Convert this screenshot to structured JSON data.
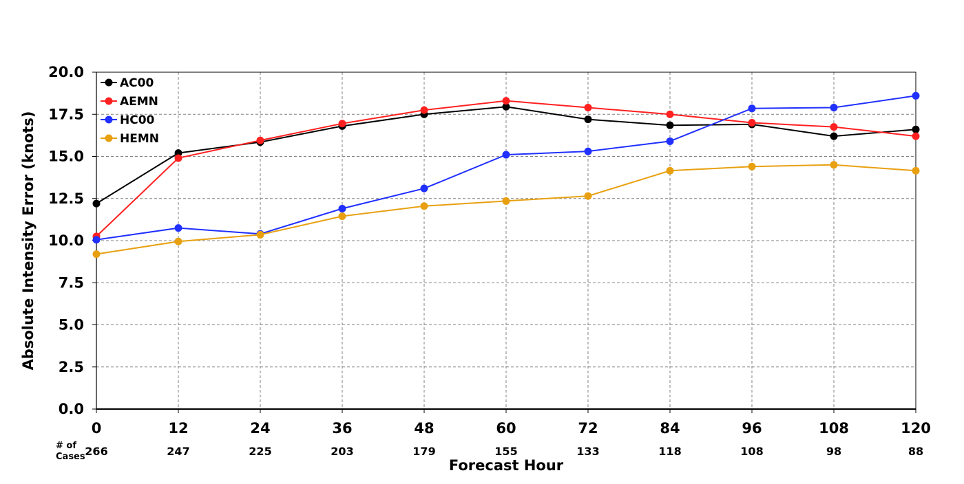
{
  "chart_data": {
    "type": "line",
    "xlabel": "Forecast Hour",
    "ylabel": "Absolute Intensity Error (knots)",
    "ylim": [
      0,
      20
    ],
    "yticks": [
      "0.0",
      "2.5",
      "5.0",
      "7.5",
      "10.0",
      "12.5",
      "15.0",
      "17.5",
      "20.0"
    ],
    "x": [
      0,
      12,
      24,
      36,
      48,
      60,
      72,
      84,
      96,
      108,
      120
    ],
    "x_tick_labels": [
      "0",
      "12",
      "24",
      "36",
      "48",
      "60",
      "72",
      "84",
      "96",
      "108",
      "120"
    ],
    "grid": true,
    "legend_position": "top-left",
    "cases_label": "# of\nCases",
    "cases": [
      "266",
      "247",
      "225",
      "203",
      "179",
      "155",
      "133",
      "118",
      "108",
      "98",
      "88"
    ],
    "series": [
      {
        "name": "AC00",
        "color": "#000000",
        "values": [
          12.2,
          15.2,
          15.85,
          16.8,
          17.5,
          17.95,
          17.2,
          16.85,
          16.9,
          16.2,
          16.6
        ]
      },
      {
        "name": "AEMN",
        "color": "#ff2020",
        "values": [
          10.25,
          14.9,
          15.95,
          16.95,
          17.75,
          18.3,
          17.9,
          17.5,
          17.0,
          16.75,
          16.2
        ]
      },
      {
        "name": "HC00",
        "color": "#2030ff",
        "values": [
          10.05,
          10.75,
          10.4,
          11.9,
          13.1,
          15.1,
          15.3,
          15.9,
          17.85,
          17.9,
          18.6
        ]
      },
      {
        "name": "HEMN",
        "color": "#e8a010",
        "values": [
          9.2,
          9.95,
          10.35,
          11.45,
          12.05,
          12.35,
          12.65,
          14.15,
          14.4,
          14.5,
          14.15
        ]
      }
    ]
  }
}
